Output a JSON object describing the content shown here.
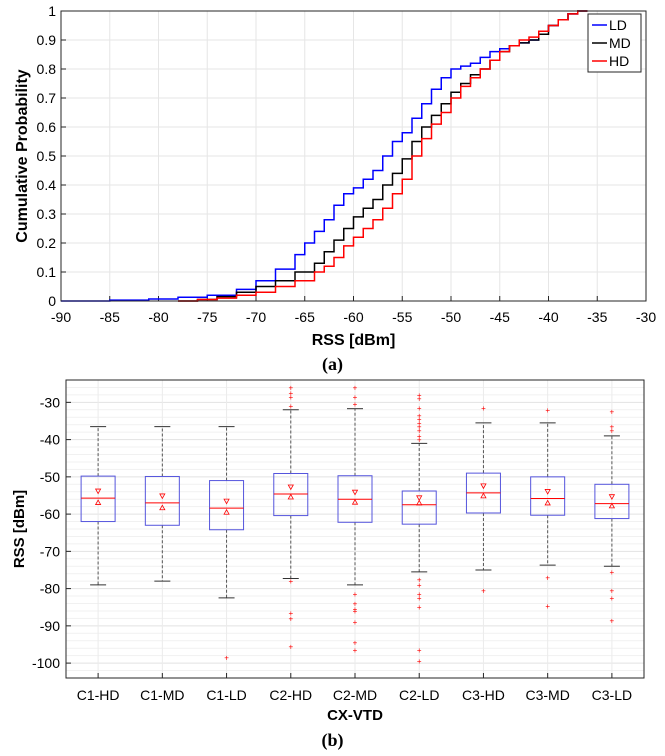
{
  "captions": {
    "top": "(a)",
    "bottom": "(b)"
  },
  "chart_data": [
    {
      "type": "line",
      "chart_kind": "empirical CDF",
      "xlabel": "RSS [dBm]",
      "ylabel": "Cumulative Probability",
      "xlim": [
        -90,
        -30
      ],
      "ylim": [
        0,
        1
      ],
      "xticks": [
        -90,
        -85,
        -80,
        -75,
        -70,
        -65,
        -60,
        -55,
        -50,
        -45,
        -40,
        -35,
        -30
      ],
      "yticks": [
        0,
        0.1,
        0.2,
        0.3,
        0.4,
        0.5,
        0.6,
        0.7,
        0.8,
        0.9,
        1
      ],
      "grid": true,
      "legend": {
        "position": "top-right"
      },
      "series": [
        {
          "name": "LD",
          "color": "#0000ff",
          "points": [
            [
              -90,
              0
            ],
            [
              -85,
              0.003
            ],
            [
              -81,
              0.007
            ],
            [
              -78,
              0.013
            ],
            [
              -75,
              0.02
            ],
            [
              -72,
              0.04
            ],
            [
              -70,
              0.07
            ],
            [
              -68,
              0.11
            ],
            [
              -66,
              0.16
            ],
            [
              -65,
              0.2
            ],
            [
              -64,
              0.24
            ],
            [
              -63,
              0.28
            ],
            [
              -62,
              0.33
            ],
            [
              -61,
              0.37
            ],
            [
              -60,
              0.39
            ],
            [
              -59,
              0.42
            ],
            [
              -58,
              0.45
            ],
            [
              -57,
              0.5
            ],
            [
              -56,
              0.55
            ],
            [
              -55,
              0.58
            ],
            [
              -54,
              0.63
            ],
            [
              -53,
              0.68
            ],
            [
              -52,
              0.73
            ],
            [
              -51,
              0.77
            ],
            [
              -50,
              0.8
            ],
            [
              -49,
              0.81
            ],
            [
              -48,
              0.82
            ],
            [
              -47,
              0.84
            ],
            [
              -46,
              0.86
            ],
            [
              -45,
              0.87
            ],
            [
              -44,
              0.88
            ],
            [
              -43,
              0.89
            ],
            [
              -42,
              0.9
            ],
            [
              -41,
              0.93
            ],
            [
              -40,
              0.95
            ],
            [
              -39,
              0.97
            ],
            [
              -38,
              0.99
            ],
            [
              -37,
              1.0
            ],
            [
              -36,
              1.0
            ]
          ]
        },
        {
          "name": "MD",
          "color": "#000000",
          "points": [
            [
              -78,
              0
            ],
            [
              -76,
              0.005
            ],
            [
              -74,
              0.015
            ],
            [
              -72,
              0.03
            ],
            [
              -70,
              0.05
            ],
            [
              -68,
              0.07
            ],
            [
              -66,
              0.1
            ],
            [
              -64,
              0.13
            ],
            [
              -63,
              0.17
            ],
            [
              -62,
              0.21
            ],
            [
              -61,
              0.25
            ],
            [
              -60,
              0.29
            ],
            [
              -59,
              0.32
            ],
            [
              -58,
              0.35
            ],
            [
              -57,
              0.4
            ],
            [
              -56,
              0.44
            ],
            [
              -55,
              0.49
            ],
            [
              -54,
              0.55
            ],
            [
              -53,
              0.6
            ],
            [
              -52,
              0.64
            ],
            [
              -51,
              0.68
            ],
            [
              -50,
              0.72
            ],
            [
              -49,
              0.75
            ],
            [
              -48,
              0.78
            ],
            [
              -47,
              0.8
            ],
            [
              -46,
              0.83
            ],
            [
              -45,
              0.86
            ],
            [
              -44,
              0.88
            ],
            [
              -43,
              0.89
            ],
            [
              -42,
              0.9
            ],
            [
              -41,
              0.92
            ],
            [
              -40,
              0.95
            ],
            [
              -39,
              0.97
            ],
            [
              -38,
              0.99
            ],
            [
              -37,
              1.0
            ],
            [
              -36,
              1.0
            ]
          ]
        },
        {
          "name": "HD",
          "color": "#ff0000",
          "points": [
            [
              -78,
              0
            ],
            [
              -76,
              0.005
            ],
            [
              -74,
              0.01
            ],
            [
              -72,
              0.02
            ],
            [
              -70,
              0.03
            ],
            [
              -68,
              0.05
            ],
            [
              -66,
              0.07
            ],
            [
              -64,
              0.1
            ],
            [
              -63,
              0.12
            ],
            [
              -62,
              0.15
            ],
            [
              -61,
              0.19
            ],
            [
              -60,
              0.22
            ],
            [
              -59,
              0.25
            ],
            [
              -58,
              0.28
            ],
            [
              -57,
              0.32
            ],
            [
              -56,
              0.37
            ],
            [
              -55,
              0.42
            ],
            [
              -54,
              0.5
            ],
            [
              -53,
              0.56
            ],
            [
              -52,
              0.61
            ],
            [
              -51,
              0.65
            ],
            [
              -50,
              0.7
            ],
            [
              -49,
              0.74
            ],
            [
              -48,
              0.77
            ],
            [
              -47,
              0.8
            ],
            [
              -46,
              0.83
            ],
            [
              -45,
              0.86
            ],
            [
              -44,
              0.88
            ],
            [
              -43,
              0.9
            ],
            [
              -42,
              0.91
            ],
            [
              -41,
              0.93
            ],
            [
              -40,
              0.95
            ],
            [
              -39,
              0.97
            ],
            [
              -38,
              0.99
            ],
            [
              -37,
              1.0
            ],
            [
              -36,
              1.0
            ]
          ]
        }
      ]
    },
    {
      "type": "box",
      "xlabel": "CX-VTD",
      "ylabel": "RSS [dBm]",
      "ylim": [
        -104,
        -24
      ],
      "yticks": [
        -30,
        -40,
        -50,
        -60,
        -70,
        -80,
        -90,
        -100
      ],
      "grid": true,
      "colors": {
        "box": "#5555dd",
        "median": "#ff0000",
        "whisker": "#555555",
        "outlier": "#ff0000"
      },
      "categories": [
        "C1-HD",
        "C1-MD",
        "C1-LD",
        "C2-HD",
        "C2-MD",
        "C2-LD",
        "C3-HD",
        "C3-MD",
        "C3-LD"
      ],
      "boxes": [
        {
          "q1": -62,
          "median": -55.7,
          "q3": -49.8,
          "whisker_low": -79,
          "whisker_high": -36.5,
          "mean": -56.9,
          "outliers": []
        },
        {
          "q1": -63,
          "median": -57,
          "q3": -49.9,
          "whisker_low": -78,
          "whisker_high": -36.5,
          "mean": -58.3,
          "outliers": []
        },
        {
          "q1": -64.2,
          "median": -58.4,
          "q3": -51,
          "whisker_low": -82.5,
          "whisker_high": -36.5,
          "mean": -59.5,
          "outliers": [
            -98.5
          ]
        },
        {
          "q1": -60.4,
          "median": -54.6,
          "q3": -49.1,
          "whisker_low": -77.3,
          "whisker_high": -32,
          "mean": -55.4,
          "outliers": [
            -26,
            -27.5,
            -28.5,
            -31,
            -78,
            -86.5,
            -88,
            -95.5
          ]
        },
        {
          "q1": -62.2,
          "median": -56,
          "q3": -49.7,
          "whisker_low": -79,
          "whisker_high": -31.7,
          "mean": -56.8,
          "outliers": [
            -26,
            -28.5,
            -30.5,
            -81.5,
            -84,
            -85.5,
            -86,
            -89,
            -94.5,
            -96.5
          ]
        },
        {
          "q1": -62.7,
          "median": -57.5,
          "q3": -53.8,
          "whisker_low": -75.5,
          "whisker_high": -41,
          "mean": -57,
          "outliers": [
            -28,
            -29,
            -31.5,
            -33.5,
            -34.5,
            -35.5,
            -36.5,
            -37.5,
            -39,
            -40,
            -77.5,
            -79,
            -81.5,
            -82.5,
            -85,
            -96.5,
            -99.5
          ]
        },
        {
          "q1": -59.7,
          "median": -54.3,
          "q3": -49,
          "whisker_low": -75,
          "whisker_high": -35.5,
          "mean": -55.1,
          "outliers": [
            -31.5,
            -80.5
          ]
        },
        {
          "q1": -60.3,
          "median": -55.8,
          "q3": -50,
          "whisker_low": -73.7,
          "whisker_high": -35.5,
          "mean": -57,
          "outliers": [
            -32,
            -77,
            -84.7
          ]
        },
        {
          "q1": -61.2,
          "median": -57.2,
          "q3": -52,
          "whisker_low": -74,
          "whisker_high": -39,
          "mean": -57.8,
          "outliers": [
            -32.5,
            -36.5,
            -37.5,
            -75.5,
            -80.5,
            -82.5,
            -88.5
          ]
        }
      ]
    }
  ]
}
